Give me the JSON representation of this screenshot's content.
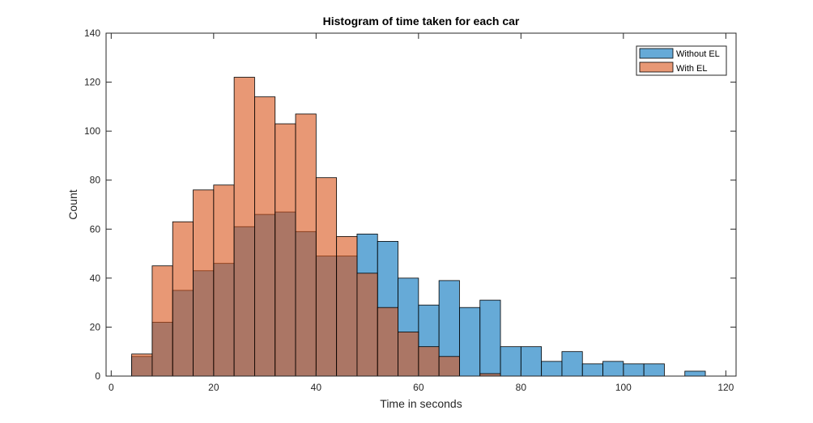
{
  "chart_data": {
    "type": "bar",
    "title": "Histogram of time taken for each car",
    "xlabel": "Time in seconds",
    "ylabel": "Count",
    "xlim": [
      -1,
      122
    ],
    "ylim": [
      0,
      140
    ],
    "xticks": [
      0,
      20,
      40,
      60,
      80,
      100,
      120
    ],
    "yticks": [
      0,
      20,
      40,
      60,
      80,
      100,
      120,
      140
    ],
    "bin_edges": [
      4,
      8,
      12,
      16,
      20,
      24,
      28,
      32,
      36,
      40,
      44,
      48,
      52,
      56,
      60,
      64,
      68,
      72,
      76,
      80,
      84,
      88,
      92,
      96,
      100,
      104,
      108,
      112,
      116
    ],
    "legend_position": "top-right",
    "grid": false,
    "series": [
      {
        "name": "Without EL",
        "color": "#0072BD",
        "values": [
          8,
          22,
          35,
          43,
          46,
          61,
          66,
          67,
          59,
          49,
          49,
          58,
          55,
          40,
          29,
          39,
          28,
          31,
          12,
          12,
          6,
          10,
          5,
          6,
          5,
          5,
          0,
          2
        ]
      },
      {
        "name": "With EL",
        "color": "#D95319",
        "values": [
          9,
          45,
          63,
          76,
          78,
          122,
          114,
          103,
          107,
          81,
          57,
          42,
          28,
          18,
          12,
          8,
          0,
          1,
          0,
          0,
          0,
          0,
          0,
          0,
          0,
          0,
          0,
          0
        ]
      }
    ]
  }
}
